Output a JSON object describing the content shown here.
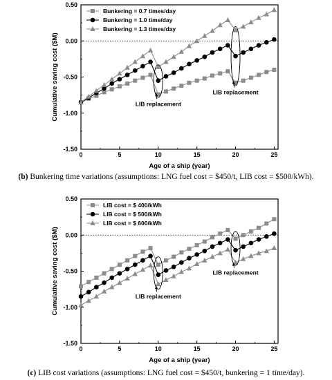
{
  "colors": {
    "gray": "#8c8c8c",
    "black": "#000000",
    "zero_line": "#000000"
  },
  "chart_data": [
    {
      "id": "b",
      "type": "line",
      "caption_label": "(b)",
      "caption_text": " Bunkering time variations (assumptions: LNG fuel cost = $450/t, LIB cost = $500/kWh).",
      "xlabel": "Age of a ship (year)",
      "ylabel": "Cumulative saving cost ($M)",
      "xlim": [
        0,
        25.5
      ],
      "ylim": [
        -1.5,
        0.5
      ],
      "xticks": [
        0,
        5,
        10,
        15,
        20,
        25
      ],
      "xtick_labels": [
        "0",
        "5",
        "10",
        "15",
        "20",
        "25"
      ],
      "yticks": [
        0.5,
        0,
        -0.5,
        -1,
        -1.5
      ],
      "ytick_labels": [
        "0.50",
        "0.00",
        "-0.50",
        "-1.00",
        "-1.50"
      ],
      "zero_line": "dotted",
      "legend_position": "top-left",
      "series": [
        {
          "name": "Bunkering = 0.7 times/day",
          "marker": "square",
          "color": "#8c8c8c",
          "x": [
            0,
            1,
            2,
            3,
            4,
            5,
            6,
            7,
            8,
            9,
            10,
            11,
            12,
            13,
            14,
            15,
            16,
            17,
            18,
            19,
            20,
            21,
            22,
            23,
            24,
            25
          ],
          "values": [
            -0.85,
            -0.8,
            -0.76,
            -0.71,
            -0.67,
            -0.63,
            -0.59,
            -0.55,
            -0.51,
            -0.47,
            -0.74,
            -0.7,
            -0.66,
            -0.62,
            -0.58,
            -0.55,
            -0.52,
            -0.48,
            -0.45,
            -0.42,
            -0.58,
            -0.55,
            -0.51,
            -0.47,
            -0.43,
            -0.4
          ]
        },
        {
          "name": "Bunkering = 1.0 time/day",
          "marker": "circle",
          "color": "#000000",
          "x": [
            0,
            1,
            2,
            3,
            4,
            5,
            6,
            7,
            8,
            9,
            10,
            11,
            12,
            13,
            14,
            15,
            16,
            17,
            18,
            19,
            20,
            21,
            22,
            23,
            24,
            25
          ],
          "values": [
            -0.85,
            -0.79,
            -0.72,
            -0.66,
            -0.59,
            -0.53,
            -0.47,
            -0.41,
            -0.35,
            -0.29,
            -0.55,
            -0.49,
            -0.44,
            -0.38,
            -0.32,
            -0.27,
            -0.22,
            -0.16,
            -0.11,
            -0.06,
            -0.21,
            -0.16,
            -0.11,
            -0.06,
            -0.02,
            0.02
          ]
        },
        {
          "name": "Bunkering = 1.3 times/day",
          "marker": "triangle",
          "color": "#8c8c8c",
          "x": [
            0,
            1,
            2,
            3,
            4,
            5,
            6,
            7,
            8,
            9,
            10,
            11,
            12,
            13,
            14,
            15,
            16,
            17,
            18,
            19,
            20,
            21,
            22,
            23,
            24,
            25
          ],
          "values": [
            -0.85,
            -0.77,
            -0.69,
            -0.61,
            -0.53,
            -0.45,
            -0.37,
            -0.29,
            -0.21,
            -0.13,
            -0.36,
            -0.29,
            -0.22,
            -0.15,
            -0.07,
            0.0,
            0.07,
            0.14,
            0.22,
            0.29,
            0.15,
            0.2,
            0.26,
            0.32,
            0.37,
            0.43
          ]
        }
      ],
      "annotations": [
        {
          "text": "LIB replacement",
          "ellipse_x": 10,
          "ellipse_yrange": [
            -0.78,
            -0.33
          ],
          "label_x": 10,
          "label_y": -0.9,
          "arrow_to": [
            9.7,
            -0.72
          ]
        },
        {
          "text": "LIB replacement",
          "ellipse_x": 20,
          "ellipse_yrange": [
            -0.62,
            0.2
          ],
          "label_x": 20,
          "label_y": -0.74,
          "arrow_to": [
            19.7,
            -0.55
          ]
        }
      ]
    },
    {
      "id": "c",
      "type": "line",
      "caption_label": "(c)",
      "caption_text": " LIB cost variations (assumptions: LNG fuel cost = $450/t, bunkering = 1 time/day).",
      "xlabel": "Age of a ship (year)",
      "ylabel": "Cumulative saving cost ($M)",
      "xlim": [
        0,
        25.5
      ],
      "ylim": [
        -1.5,
        0.5
      ],
      "xticks": [
        0,
        5,
        10,
        15,
        20,
        25
      ],
      "xtick_labels": [
        "0",
        "5",
        "10",
        "15",
        "20",
        "25"
      ],
      "yticks": [
        0.5,
        0,
        -0.5,
        -1,
        -1.5
      ],
      "ytick_labels": [
        "0.50",
        "0.00",
        "-0.50",
        "-1.00",
        "-1.50"
      ],
      "zero_line": "dotted",
      "legend_position": "top-left",
      "series": [
        {
          "name": "LIB cost = $ 400/kWh",
          "marker": "square",
          "color": "#8c8c8c",
          "x": [
            0,
            1,
            2,
            3,
            4,
            5,
            6,
            7,
            8,
            9,
            10,
            11,
            12,
            13,
            14,
            15,
            16,
            17,
            18,
            19,
            20,
            21,
            22,
            23,
            24,
            25
          ],
          "values": [
            -0.71,
            -0.65,
            -0.59,
            -0.53,
            -0.47,
            -0.41,
            -0.35,
            -0.29,
            -0.23,
            -0.18,
            -0.41,
            -0.35,
            -0.3,
            -0.24,
            -0.19,
            -0.14,
            -0.09,
            -0.03,
            0.02,
            0.07,
            -0.05,
            0.0,
            0.05,
            0.1,
            0.16,
            0.22
          ]
        },
        {
          "name": "LIB cost = $ 500/kWh",
          "marker": "circle",
          "color": "#000000",
          "x": [
            0,
            1,
            2,
            3,
            4,
            5,
            6,
            7,
            8,
            9,
            10,
            11,
            12,
            13,
            14,
            15,
            16,
            17,
            18,
            19,
            20,
            21,
            22,
            23,
            24,
            25
          ],
          "values": [
            -0.85,
            -0.79,
            -0.72,
            -0.66,
            -0.59,
            -0.53,
            -0.47,
            -0.41,
            -0.35,
            -0.29,
            -0.55,
            -0.49,
            -0.44,
            -0.38,
            -0.32,
            -0.27,
            -0.22,
            -0.16,
            -0.11,
            -0.06,
            -0.21,
            -0.16,
            -0.11,
            -0.06,
            -0.02,
            0.02
          ]
        },
        {
          "name": "LIB cost = $ 600/kWh",
          "marker": "triangle",
          "color": "#8c8c8c",
          "x": [
            0,
            1,
            2,
            3,
            4,
            5,
            6,
            7,
            8,
            9,
            10,
            11,
            12,
            13,
            14,
            15,
            16,
            17,
            18,
            19,
            20,
            21,
            22,
            23,
            24,
            25
          ],
          "values": [
            -0.97,
            -0.91,
            -0.85,
            -0.78,
            -0.72,
            -0.66,
            -0.6,
            -0.54,
            -0.48,
            -0.42,
            -0.68,
            -0.62,
            -0.57,
            -0.51,
            -0.46,
            -0.4,
            -0.35,
            -0.3,
            -0.25,
            -0.2,
            -0.38,
            -0.33,
            -0.29,
            -0.25,
            -0.22,
            -0.18
          ]
        }
      ],
      "annotations": [
        {
          "text": "LIB replacement",
          "ellipse_x": 10,
          "ellipse_yrange": [
            -0.75,
            -0.3
          ],
          "label_x": 10,
          "label_y": -0.88,
          "arrow_to": [
            9.7,
            -0.7
          ]
        },
        {
          "text": "LIB replacement",
          "ellipse_x": 20,
          "ellipse_yrange": [
            -0.42,
            0.05
          ],
          "label_x": 20,
          "label_y": -0.55,
          "arrow_to": [
            19.7,
            -0.38
          ]
        }
      ]
    }
  ]
}
